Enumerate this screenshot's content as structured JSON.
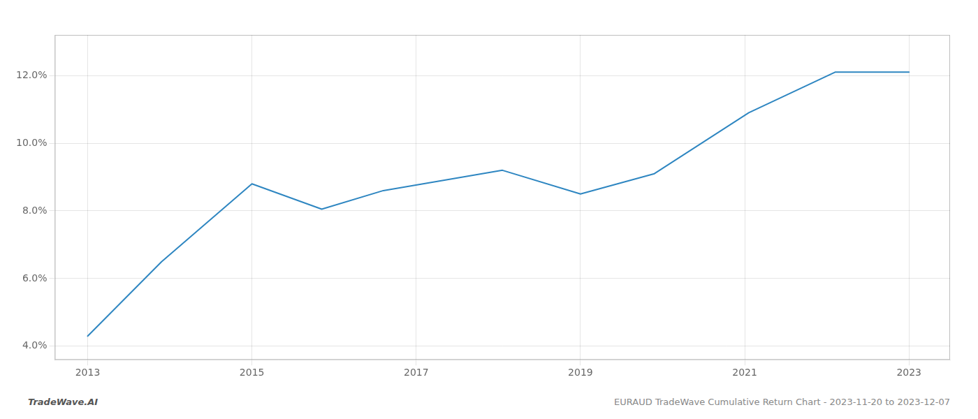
{
  "chart_data": {
    "type": "line",
    "x": [
      2013,
      2013.9,
      2015.0,
      2015.85,
      2016.6,
      2018.05,
      2019.0,
      2019.9,
      2021.05,
      2022.1,
      2023.0
    ],
    "values": [
      4.3,
      6.5,
      8.8,
      8.05,
      8.6,
      9.2,
      8.5,
      9.1,
      10.9,
      12.1,
      12.1
    ],
    "color": "#2e86c1",
    "xlim": [
      2012.6,
      2023.5
    ],
    "ylim": [
      3.6,
      13.2
    ],
    "xticks": [
      2013,
      2015,
      2017,
      2019,
      2021,
      2023
    ],
    "yticks": [
      {
        "value": 4.0,
        "label": "4.0%"
      },
      {
        "value": 6.0,
        "label": "6.0%"
      },
      {
        "value": 8.0,
        "label": "8.0%"
      },
      {
        "value": 10.0,
        "label": "10.0%"
      },
      {
        "value": 12.0,
        "label": "12.0%"
      }
    ],
    "grid": true,
    "annotations": [
      "TradeWave.AI",
      "EURAUD TradeWave Cumulative Return Chart - 2023-11-20 to 2023-12-07"
    ]
  }
}
